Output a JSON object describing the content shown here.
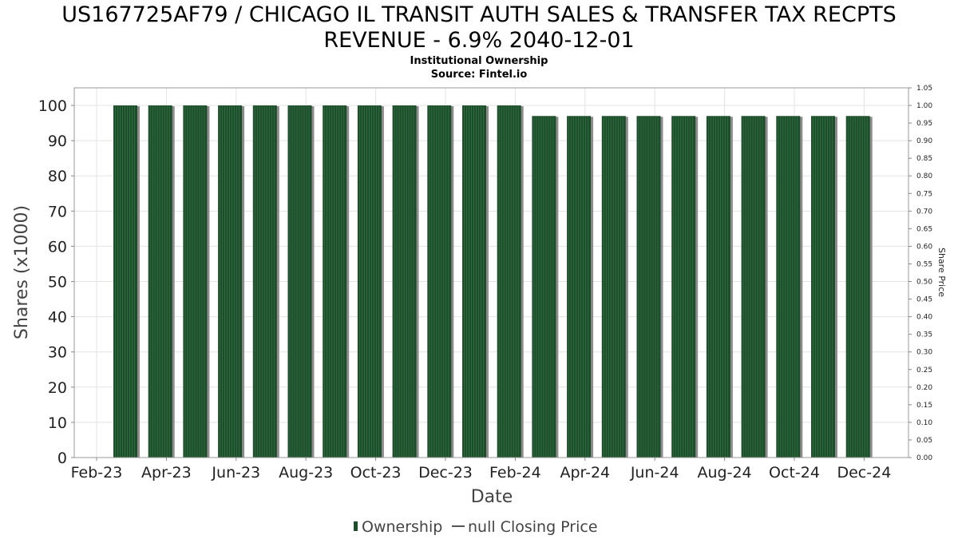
{
  "chart_data": {
    "type": "bar",
    "title_line1": "US167725AF79 / CHICAGO IL TRANSIT AUTH SALES & TRANSFER TAX RECPTS",
    "title_line2": "REVENUE - 6.9% 2040-12-01",
    "subtitle_line1": "Institutional Ownership",
    "subtitle_line2": "Source: Fintel.io",
    "xlabel": "Date",
    "ylabel": "Shares (x1000)",
    "y2label": "Share Price",
    "ylim": [
      0,
      105
    ],
    "y2lim": [
      0,
      1.05
    ],
    "yticks": [
      "0",
      "10",
      "20",
      "30",
      "40",
      "50",
      "60",
      "70",
      "80",
      "90",
      "100"
    ],
    "y2ticks": [
      "0.00",
      "0.05",
      "0.10",
      "0.15",
      "0.20",
      "0.25",
      "0.30",
      "0.35",
      "0.40",
      "0.45",
      "0.50",
      "0.55",
      "0.60",
      "0.65",
      "0.70",
      "0.75",
      "0.80",
      "0.85",
      "0.90",
      "0.95",
      "1.00",
      "1.05"
    ],
    "xticks": [
      "Feb-23",
      "Apr-23",
      "Jun-23",
      "Aug-23",
      "Oct-23",
      "Dec-23",
      "Feb-24",
      "Apr-24",
      "Jun-24",
      "Aug-24",
      "Oct-24",
      "Dec-24"
    ],
    "grid": true,
    "legend_position": "bottom",
    "series": [
      {
        "name": "Ownership",
        "color": "#1e4d2b",
        "values": [
          100,
          100,
          100,
          100,
          100,
          100,
          100,
          100,
          100,
          100,
          100,
          100,
          97,
          97,
          97,
          97,
          97,
          97,
          97,
          97,
          97,
          97
        ]
      }
    ],
    "legend": [
      {
        "label": "Ownership",
        "marker": "bar",
        "color": "#1e4d2b"
      },
      {
        "label": "null Closing Price",
        "marker": "line",
        "color": "#555555"
      }
    ]
  }
}
